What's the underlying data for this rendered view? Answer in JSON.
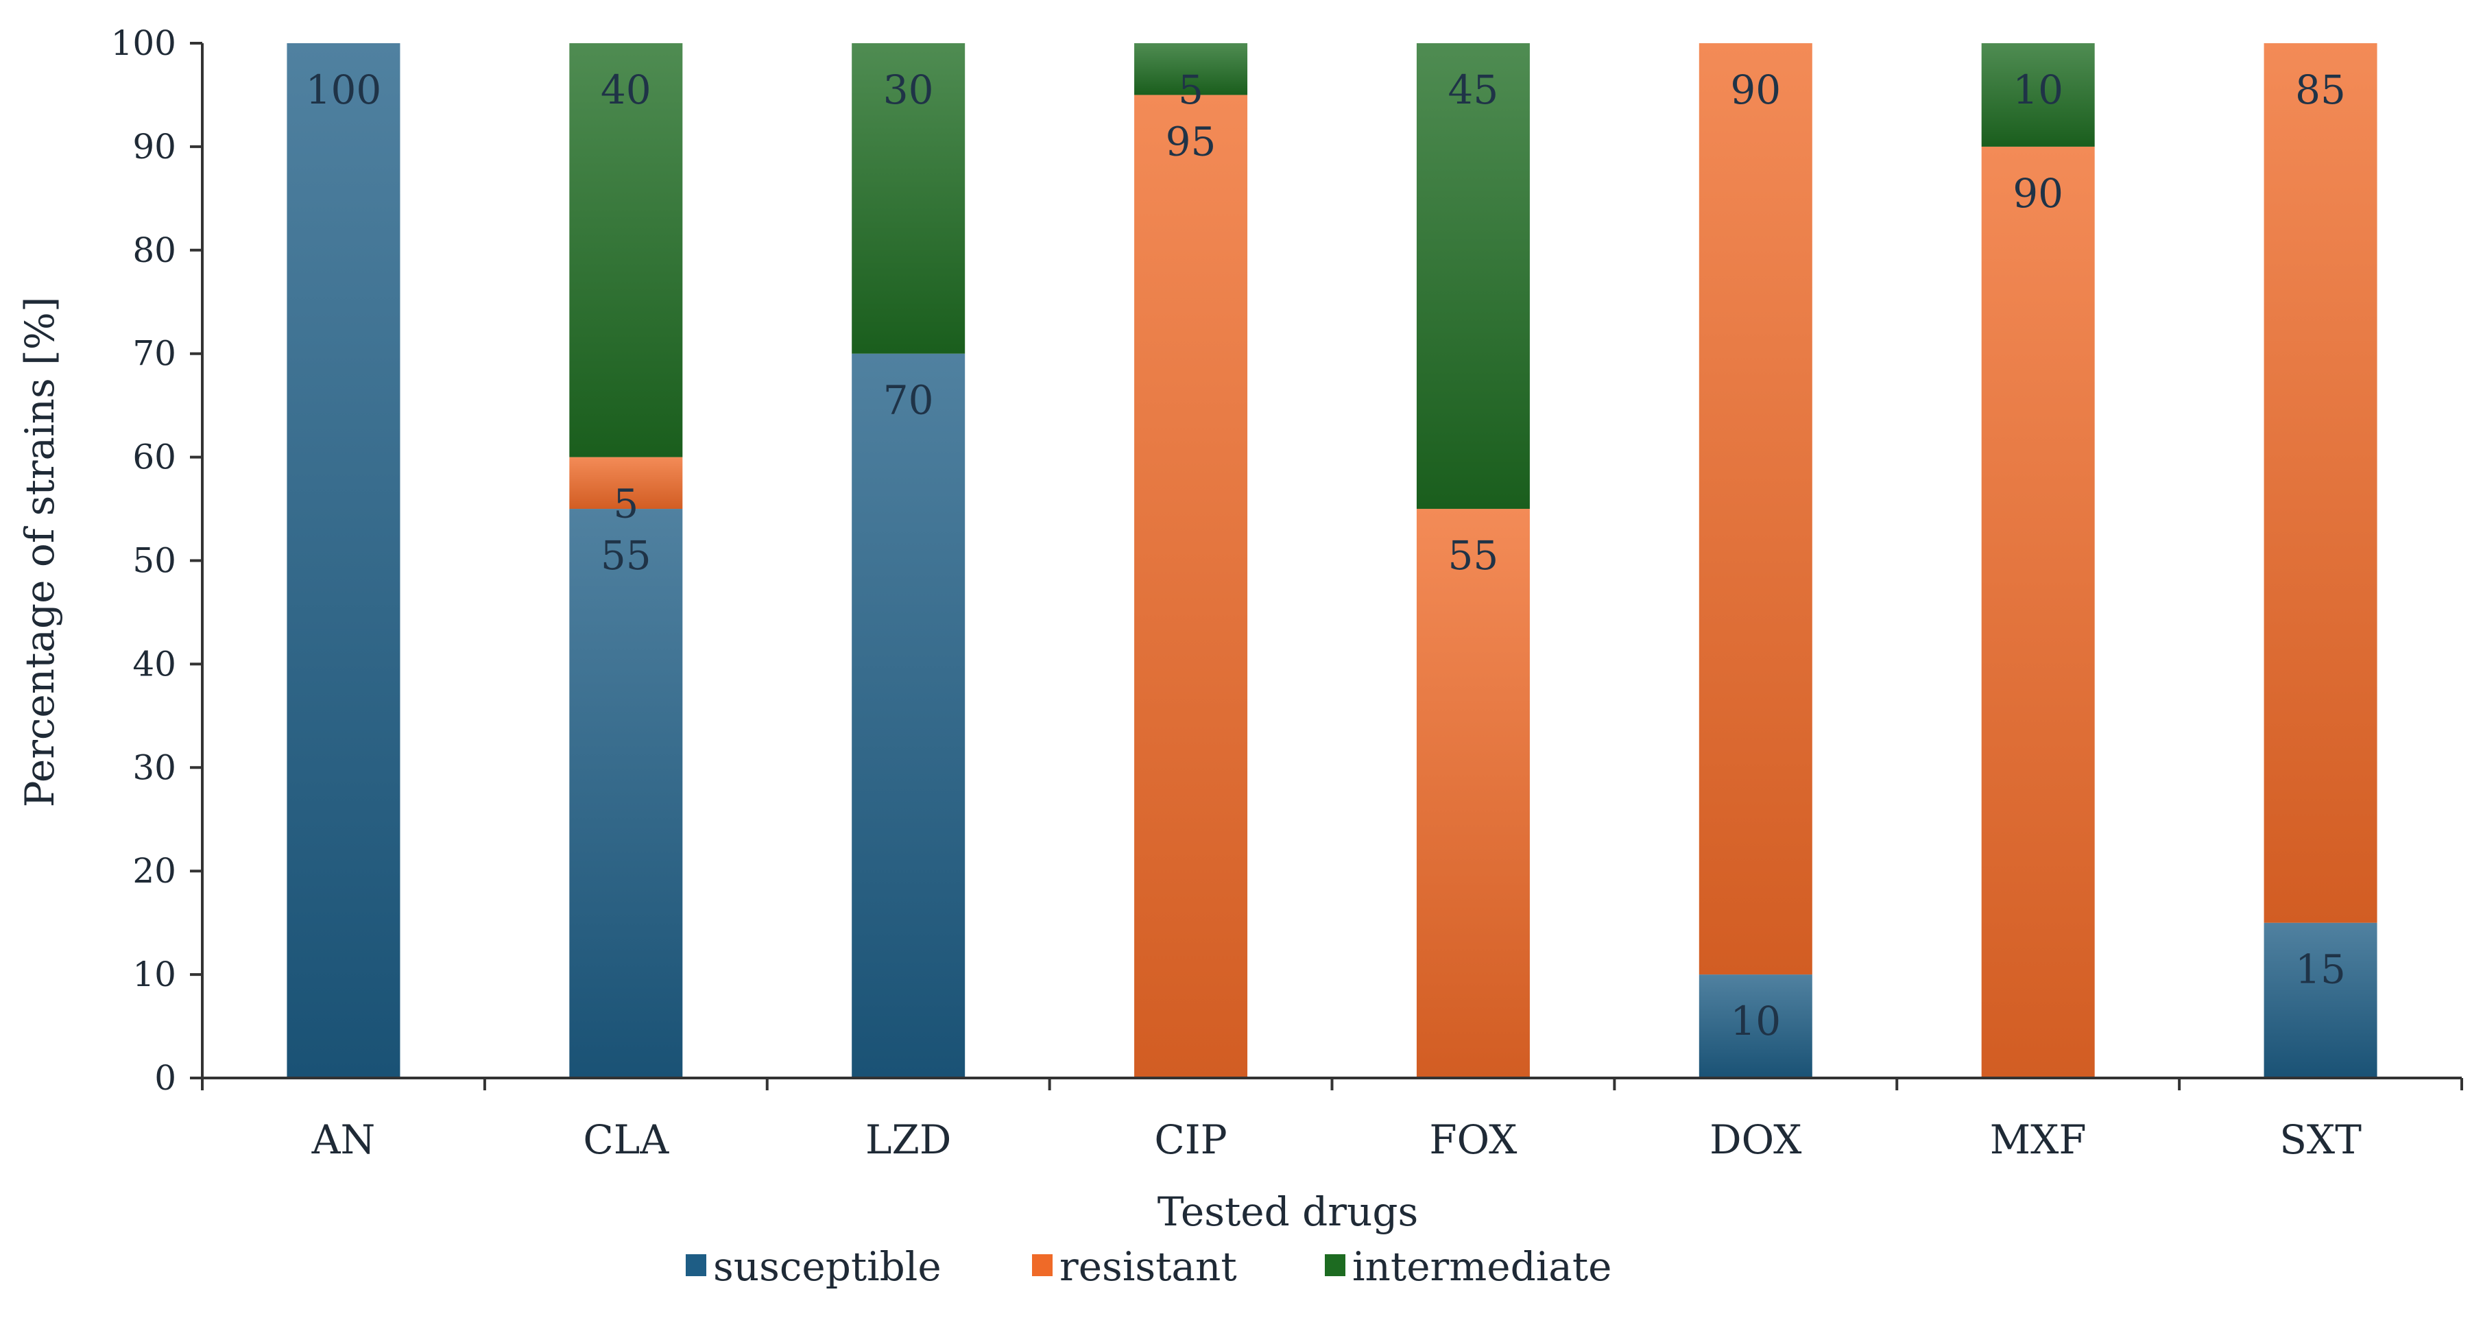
{
  "chart_data": {
    "type": "bar",
    "stacked": true,
    "title": "",
    "xlabel": "Tested drugs",
    "ylabel": "Percentage of strains  [%]",
    "ylim": [
      0,
      100
    ],
    "yticks": [
      0,
      10,
      20,
      30,
      40,
      50,
      60,
      70,
      80,
      90,
      100
    ],
    "grid": false,
    "legend_position": "bottom-center",
    "categories": [
      "AN",
      "CLA",
      "LZD",
      "CIP",
      "FOX",
      "DOX",
      "MXF",
      "SXT"
    ],
    "series": [
      {
        "name": "susceptible",
        "color": "#1e5d85",
        "values": [
          100,
          55,
          70,
          0,
          0,
          10,
          0,
          15
        ]
      },
      {
        "name": "resistant",
        "color": "#ef6a28",
        "values": [
          0,
          5,
          0,
          95,
          55,
          90,
          90,
          85
        ]
      },
      {
        "name": "intermediate",
        "color": "#1d6b21",
        "values": [
          0,
          40,
          30,
          5,
          45,
          0,
          10,
          0
        ]
      }
    ]
  }
}
